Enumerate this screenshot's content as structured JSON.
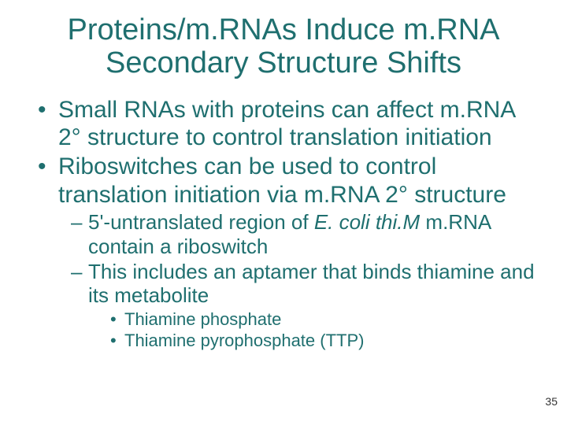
{
  "colors": {
    "title": "#1f6f6f",
    "body": "#1f6f6f",
    "sub": "#1f6f6f",
    "subsub": "#1f6f6f",
    "pagenum": "#333333",
    "background": "#ffffff"
  },
  "fonts": {
    "title_size": 38,
    "body_size": 30,
    "sub_size": 26,
    "subsub_size": 22,
    "pagenum_size": 14
  },
  "title": {
    "line1": "Proteins/m.RNAs Induce m.RNA",
    "line2": "Secondary Structure Shifts"
  },
  "bullets": [
    {
      "text": "Small RNAs with proteins can affect m.RNA 2° structure to control translation initiation"
    },
    {
      "text": "Riboswitches can be used to control translation initiation via m.RNA 2° structure",
      "sub": [
        {
          "pre": "5'-untranslated region of ",
          "ital": "E. coli thi.M",
          "post": " m.RNA contain a riboswitch"
        },
        {
          "pre": "This includes an aptamer that binds thiamine and its metabolite",
          "ital": "",
          "post": "",
          "subsub": [
            "Thiamine phosphate",
            "Thiamine pyrophosphate (TTP)"
          ]
        }
      ]
    }
  ],
  "page_number": "35"
}
